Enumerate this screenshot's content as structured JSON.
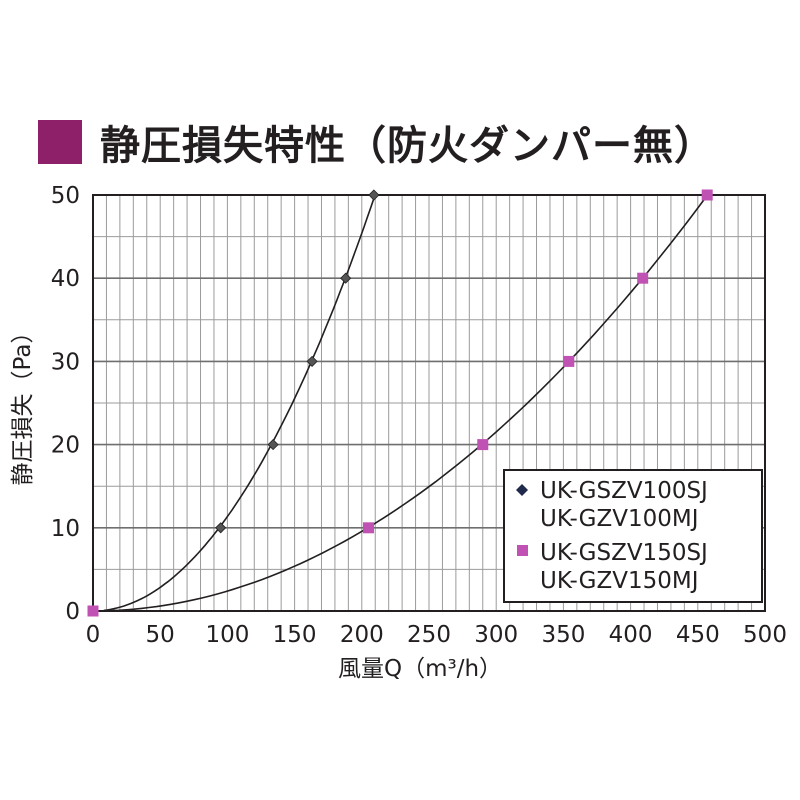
{
  "title": "静圧損失特性（防火ダンパー無）",
  "colors": {
    "accent": "#8e1f69",
    "series1": "#1f2a4d",
    "series2": "#c052b4",
    "grid": "#9b9b9b",
    "curve": "#231f20"
  },
  "chart_data": {
    "type": "line",
    "title": "静圧損失特性（防火ダンパー無）",
    "xlabel": "風量Q（m³/h）",
    "ylabel": "静圧損失（Pa）",
    "xlim": [
      0,
      500
    ],
    "ylim": [
      0,
      50
    ],
    "x_ticks": [
      "0",
      "50",
      "100",
      "150",
      "200",
      "250",
      "300",
      "350",
      "400",
      "450",
      "500"
    ],
    "y_ticks": [
      "0",
      "10",
      "20",
      "30",
      "40",
      "50"
    ],
    "grid": true,
    "legend_position": "bottom-right",
    "series": [
      {
        "name": "UK-GSZV100SJ\nUK-GZV100MJ",
        "name_lines": [
          "UK-GSZV100SJ",
          "UK-GZV100MJ"
        ],
        "marker": "diamond",
        "color": "#1f2a4d",
        "x": [
          95,
          134,
          163,
          188,
          209
        ],
        "y": [
          10,
          20,
          30,
          40,
          50
        ]
      },
      {
        "name": "UK-GSZV150SJ\nUK-GZV150MJ",
        "name_lines": [
          "UK-GSZV150SJ",
          "UK-GZV150MJ"
        ],
        "marker": "square",
        "color": "#c052b4",
        "x": [
          0,
          205,
          290,
          354,
          409,
          457
        ],
        "y": [
          0,
          10,
          20,
          30,
          40,
          50
        ]
      }
    ]
  }
}
